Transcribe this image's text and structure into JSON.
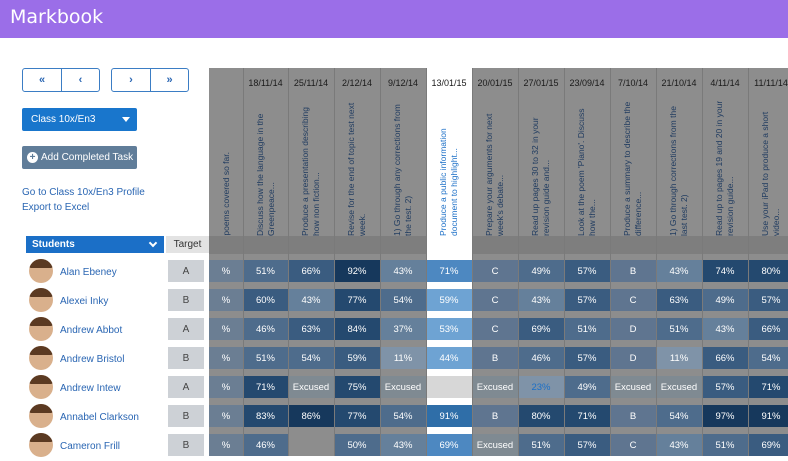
{
  "app": {
    "title": "Markbook"
  },
  "colors": {
    "topbar": "#9b6ee8",
    "accent": "#1b6fc7",
    "button_grey": "#607d99"
  },
  "nav": {
    "first_label": "«",
    "prev_label": "‹",
    "next_label": "›",
    "last_label": "»"
  },
  "class_select": {
    "value": "Class 10x/En3"
  },
  "actions": {
    "add_task_label": "Add Completed Task",
    "profile_link": "Go to Class 10x/En3 Profile",
    "export_link": "Export to Excel"
  },
  "table": {
    "students_header": "Students",
    "target_header": "Target",
    "students": [
      {
        "name": "Alan Ebeney",
        "target": "A"
      },
      {
        "name": "Alexei Inky",
        "target": "B"
      },
      {
        "name": "Andrew Abbot",
        "target": "A"
      },
      {
        "name": "Andrew Bristol",
        "target": "B"
      },
      {
        "name": "Andrew Intew",
        "target": "A"
      },
      {
        "name": "Annabel Clarkson",
        "target": "B"
      },
      {
        "name": "Cameron Frill",
        "target": "B"
      }
    ],
    "columns": [
      {
        "date": "",
        "title": "poems covered so far.",
        "cells": [
          "%",
          "%",
          "%",
          "%",
          "%",
          "%",
          "%"
        ]
      },
      {
        "date": "18/11/14",
        "title": "Discuss how the language in the Greenpeace...",
        "cells": [
          "51%",
          "60%",
          "46%",
          "51%",
          "71%",
          "83%",
          "46%"
        ]
      },
      {
        "date": "25/11/14",
        "title": "Produce a presentation describing how non fiction...",
        "cells": [
          "66%",
          "43%",
          "63%",
          "54%",
          "Excused",
          "86%",
          ""
        ]
      },
      {
        "date": "2/12/14",
        "title": "Revise for the end of topic test next week.",
        "cells": [
          "92%",
          "77%",
          "84%",
          "59%",
          "75%",
          "77%",
          "50%"
        ]
      },
      {
        "date": "9/12/14",
        "title": "1) Go through any corrections from the test. 2)",
        "cells": [
          "43%",
          "54%",
          "37%",
          "11%",
          "Excused",
          "54%",
          "43%"
        ]
      },
      {
        "date": "13/01/15",
        "title": "Produce a public information document to highlight...",
        "selected": true,
        "cells": [
          "71%",
          "59%",
          "53%",
          "44%",
          "",
          "91%",
          "69%"
        ]
      },
      {
        "date": "20/01/15",
        "title": "Prepare your arguments for next week's debate...",
        "cells": [
          "C",
          "C",
          "C",
          "B",
          "Excused",
          "B",
          "Excused"
        ]
      },
      {
        "date": "27/01/15",
        "title": "Read up pages 30 to 32 in your revision guide and...",
        "cells": [
          "49%",
          "43%",
          "69%",
          "46%",
          "23%",
          "80%",
          "51%"
        ]
      },
      {
        "date": "23/09/14",
        "title": "Look at the poem 'Piano'. Discuss how the...",
        "cells": [
          "57%",
          "57%",
          "51%",
          "57%",
          "49%",
          "71%",
          "57%"
        ]
      },
      {
        "date": "7/10/14",
        "title": "Produce a summary to describe the difference...",
        "cells": [
          "B",
          "C",
          "D",
          "D",
          "Excused",
          "B",
          "C"
        ]
      },
      {
        "date": "21/10/14",
        "title": "1) Go through corrections from the last test. 2)",
        "cells": [
          "43%",
          "63%",
          "51%",
          "11%",
          "Excused",
          "54%",
          "43%"
        ]
      },
      {
        "date": "4/11/14",
        "title": "Read up to pages 19 and 20 in your revision guide...",
        "cells": [
          "74%",
          "49%",
          "43%",
          "66%",
          "57%",
          "97%",
          "51%"
        ]
      },
      {
        "date": "11/11/14",
        "title": "Use your iPad to produce a short video...",
        "cells": [
          "80%",
          "57%",
          "66%",
          "54%",
          "71%",
          "91%",
          "69%"
        ]
      }
    ]
  }
}
